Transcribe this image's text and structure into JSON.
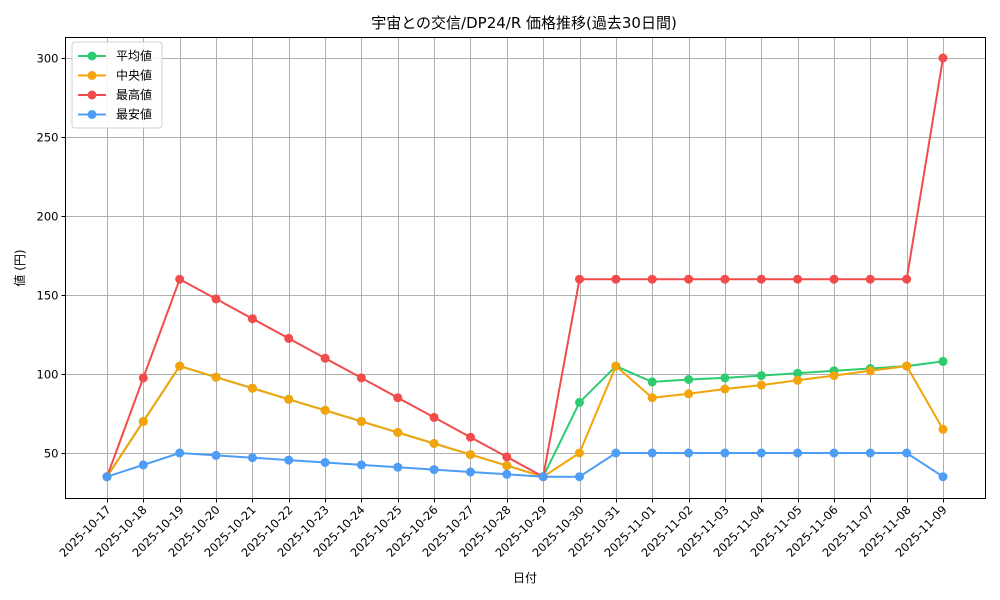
{
  "chart_data": {
    "type": "line",
    "title": "宇宙との交信/DP24/R 価格推移(過去30日間)",
    "xlabel": "日付",
    "ylabel": "値 (円)",
    "ylim": [
      22,
      313
    ],
    "yticks": [
      50,
      100,
      150,
      200,
      250,
      300
    ],
    "grid": true,
    "legend_position": "upper left",
    "x": [
      "2025-10-17",
      "2025-10-18",
      "2025-10-19",
      "2025-10-20",
      "2025-10-21",
      "2025-10-22",
      "2025-10-23",
      "2025-10-24",
      "2025-10-25",
      "2025-10-26",
      "2025-10-27",
      "2025-10-28",
      "2025-10-29",
      "2025-10-30",
      "2025-10-31",
      "2025-11-01",
      "2025-11-02",
      "2025-11-03",
      "2025-11-04",
      "2025-11-05",
      "2025-11-06",
      "2025-11-07",
      "2025-11-08",
      "2025-11-09"
    ],
    "series": [
      {
        "name": "平均値",
        "color": "#2ecc71",
        "values": [
          35,
          70,
          105,
          98,
          91,
          84,
          77,
          70,
          63,
          56,
          49,
          42,
          35,
          82,
          105,
          95,
          96.5,
          97.5,
          99,
          100.5,
          102,
          103.5,
          105,
          108
        ]
      },
      {
        "name": "中央値",
        "color": "#f5a30a",
        "values": [
          35,
          70,
          105,
          98,
          91,
          84,
          77,
          70,
          63,
          56,
          49,
          42,
          35,
          50,
          105,
          85,
          87.5,
          90.5,
          93,
          96,
          99,
          102,
          105,
          65
        ]
      },
      {
        "name": "最高値",
        "color": "#f24b4b",
        "values": [
          35,
          97.5,
          160,
          147.5,
          135,
          122.5,
          110,
          97.5,
          85,
          72.5,
          60,
          47.5,
          35,
          160,
          160,
          160,
          160,
          160,
          160,
          160,
          160,
          160,
          160,
          300
        ]
      },
      {
        "name": "最安値",
        "color": "#4d9cf5",
        "values": [
          35,
          42.5,
          50,
          48.5,
          47,
          45.5,
          44,
          42.5,
          41,
          39.5,
          38,
          36.5,
          35,
          35,
          50,
          50,
          50,
          50,
          50,
          50,
          50,
          50,
          50,
          35
        ]
      }
    ]
  }
}
